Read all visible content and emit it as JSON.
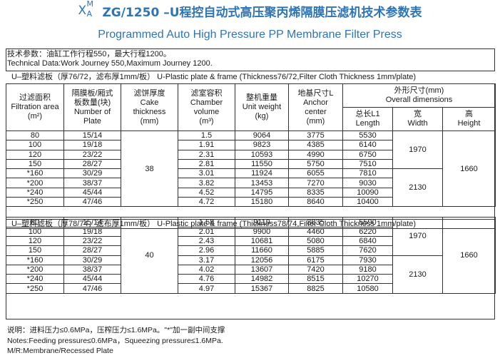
{
  "title": {
    "prefix_x": "X",
    "prefix_m": "M",
    "prefix_a": "A",
    "cn": "ZG/1250 –U程控自动式高压聚丙烯隔膜压滤机技术参数表",
    "en": "Programmed Auto High Pressure PP Membrane Filter Press"
  },
  "tech": {
    "cn": "技术参数：油缸工作行程550，最大行程1200。",
    "en": "Technical Data:Work Journey 550,Maximum Journey 1200."
  },
  "section1": "U–塑料滤板（厚76/72，滤布厚1mm/板） U-Plastic plate & frame (Thickness76/72,Filter Cloth Thickness 1mm/plate)",
  "section2": "U–塑料滤板（厚78/74，滤布厚1mm/板） U-Plastic plate & frame (Thickness78/74,Filter Cloth Thickness 1mm/plate)",
  "headers": {
    "area": [
      "过滤面积",
      "Filtration area",
      "(m²)"
    ],
    "plates": [
      "隔膜板/厢式",
      "板数量(块)",
      "Number of",
      "Plate"
    ],
    "cake": [
      "滤饼厚度",
      "Cake",
      "thickness",
      "(mm)"
    ],
    "chamber": [
      "滤室容积",
      "Chamber",
      "volume",
      "(m³)"
    ],
    "weight": [
      "整机重量",
      "Unit weight",
      "(kg)"
    ],
    "anchor": [
      "地基尺寸L",
      "Anchor",
      "center",
      "(mm)"
    ],
    "overall": [
      "外形尺寸(mm)",
      "Overall  dimensions"
    ],
    "length": [
      "总长L1",
      "Length"
    ],
    "width": [
      "宽",
      "Width"
    ],
    "height": [
      "高",
      "Height"
    ]
  },
  "table1": {
    "cake": "38",
    "width_a": "1970",
    "width_b": "2130",
    "height": "1660",
    "rows": [
      [
        "80",
        "15/14",
        "1.5",
        "9064",
        "3775",
        "5530"
      ],
      [
        "100",
        "19/18",
        "1.91",
        "9823",
        "4385",
        "6140"
      ],
      [
        "120",
        "23/22",
        "2.31",
        "10593",
        "4990",
        "6750"
      ],
      [
        "150",
        "28/27",
        "2.81",
        "11550",
        "5750",
        "7510"
      ],
      [
        "*160",
        "30/29",
        "3.01",
        "11924",
        "6055",
        "7810"
      ],
      [
        "*200",
        "38/37",
        "3.82",
        "13453",
        "7270",
        "9030"
      ],
      [
        "*240",
        "45/44",
        "4.52",
        "14795",
        "8335",
        "10090"
      ],
      [
        "*250",
        "47/46",
        "4.72",
        "15180",
        "8640",
        "10400"
      ]
    ]
  },
  "table2": {
    "cake": "40",
    "width_a": "1970",
    "width_b": "2130",
    "height": "1660",
    "rows": [
      [
        "80",
        "15/14",
        "1.58",
        "9119",
        "3835",
        "5590"
      ],
      [
        "100",
        "19/18",
        "2.01",
        "9900",
        "4460",
        "6220"
      ],
      [
        "120",
        "23/22",
        "2.43",
        "10681",
        "5080",
        "6840"
      ],
      [
        "150",
        "28/27",
        "2.96",
        "11660",
        "5885",
        "7620"
      ],
      [
        "*160",
        "30/29",
        "3.17",
        "12056",
        "6175",
        "7930"
      ],
      [
        "*200",
        "38/37",
        "4.02",
        "13607",
        "7420",
        "9180"
      ],
      [
        "*240",
        "45/44",
        "4.76",
        "14982",
        "8515",
        "10270"
      ],
      [
        "*250",
        "47/46",
        "4.97",
        "15367",
        "8825",
        "10580"
      ]
    ]
  },
  "notes": [
    "说明：进料压力≤0.6MPa，压榨压力≤1.6MPa。\"*\"加一副中间支撑",
    "Notes:Feeding pressure≤0.6MPa，Squeezing pressure≤1.6MPa.",
    "M/R:Membrane/Recessed Plate"
  ],
  "colors": {
    "title": "#2e75b6",
    "border": "#333333"
  }
}
